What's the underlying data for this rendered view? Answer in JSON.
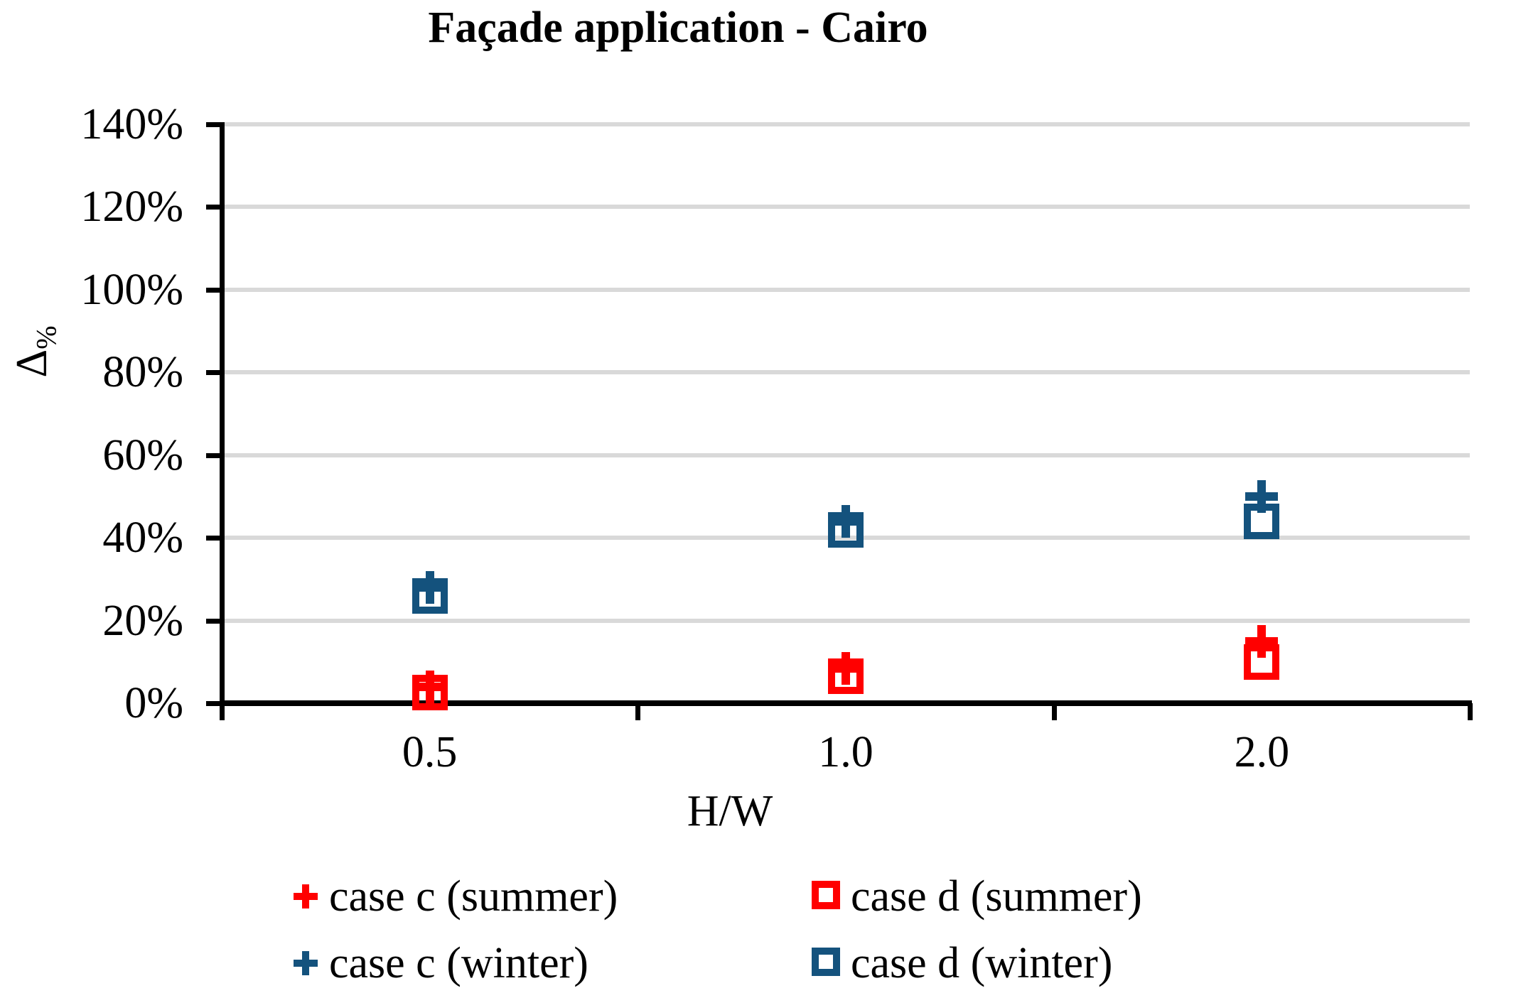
{
  "chart_data": {
    "type": "scatter",
    "title": "Façade application - Cairo",
    "xlabel": "H/W",
    "ylabel": "Δ%",
    "ylabel_main": "Δ",
    "ylabel_subscript": "%",
    "x_categories": [
      "0.5",
      "1.0",
      "2.0"
    ],
    "x_values_hw": [
      0.5,
      1.0,
      2.0
    ],
    "series": [
      {
        "name": "case c (summer)",
        "case": "c",
        "season": "summer",
        "marker": "plus",
        "color": "#FF0000",
        "values_pct": [
          4,
          8.5,
          15
        ]
      },
      {
        "name": "case d (summer)",
        "case": "d",
        "season": "summer",
        "marker": "square",
        "color": "#FF0000",
        "values_pct": [
          2.5,
          6.5,
          10
        ]
      },
      {
        "name": "case c (winter)",
        "case": "c",
        "season": "winter",
        "marker": "plus",
        "color": "#14527D",
        "values_pct": [
          28,
          44,
          50
        ]
      },
      {
        "name": "case d (winter)",
        "case": "d",
        "season": "winter",
        "marker": "square",
        "color": "#14527D",
        "values_pct": [
          26,
          42,
          44
        ]
      }
    ],
    "y_axis": {
      "min_pct": 0,
      "max_pct": 140,
      "step_pct": 20,
      "tick_labels": [
        "0%",
        "20%",
        "40%",
        "60%",
        "80%",
        "100%",
        "120%",
        "140%"
      ]
    },
    "grid": "horizontal",
    "legend_position": "bottom",
    "colors": {
      "summer": "#FF0000",
      "winter": "#14527D",
      "gridline": "#D9D9D9",
      "axis": "#000000",
      "background": "#FFFFFF"
    }
  }
}
